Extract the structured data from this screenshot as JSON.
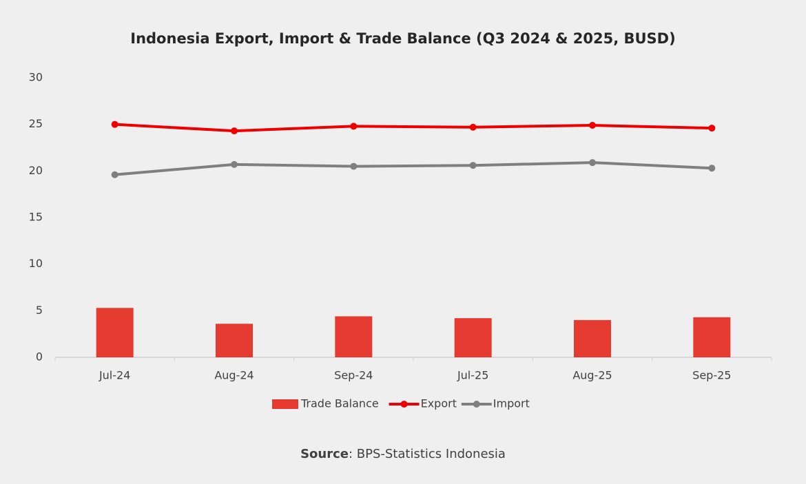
{
  "chart_data": {
    "type": "combo",
    "title": "Indonesia Export, Import & Trade Balance (Q3 2024 & 2025, BUSD)",
    "categories": [
      "Jul-24",
      "Aug-24",
      "Sep-24",
      "Jul-25",
      "Aug-25",
      "Sep-25"
    ],
    "series": [
      {
        "name": "Trade Balance",
        "type": "bar",
        "color": "#e53a2f",
        "values": [
          5.3,
          3.6,
          4.4,
          4.2,
          4.0,
          4.3
        ]
      },
      {
        "name": "Export",
        "type": "line",
        "color": "#ee0000",
        "values": [
          25.0,
          24.3,
          24.8,
          24.7,
          24.9,
          24.6
        ]
      },
      {
        "name": "Import",
        "type": "line",
        "color": "#7f7f7f",
        "values": [
          19.6,
          20.7,
          20.5,
          20.6,
          20.9,
          20.3
        ]
      }
    ],
    "ylim": [
      0,
      30
    ],
    "yticks": [
      0,
      5,
      10,
      15,
      20,
      25,
      30
    ],
    "grid": false,
    "legend": "bottom"
  },
  "source": {
    "label": "Source",
    "text": ": BPS-Statistics Indonesia"
  }
}
